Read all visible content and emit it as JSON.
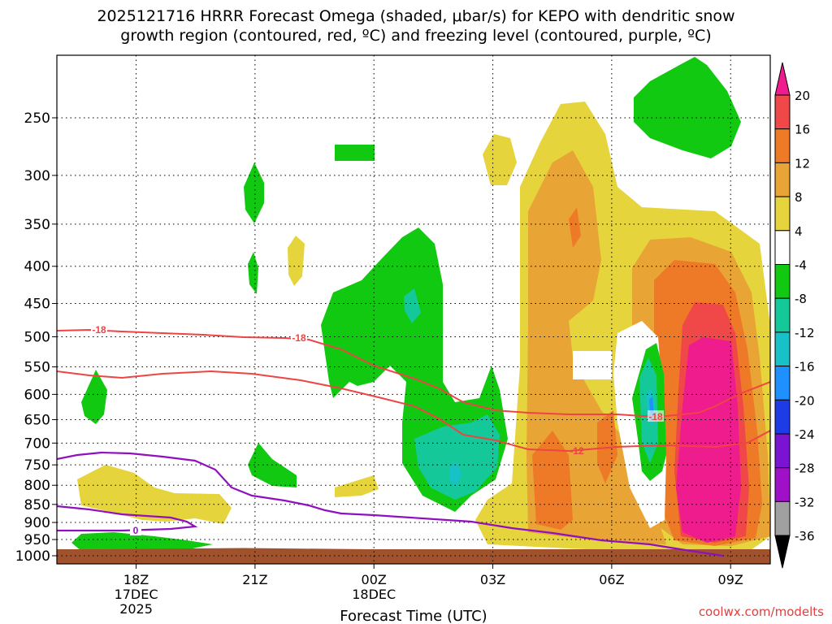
{
  "chart_data": {
    "type": "heatmap",
    "title_line1": "2025121716 HRRR Forecast Omega (shaded, μbar/s) for KEPO with dendritic snow",
    "title_line2": "growth region (contoured, red, ºC) and freezing level (contoured, purple, ºC)",
    "xlabel": "Forecast Time (UTC)",
    "credit": "coolwx.com/modelts",
    "y_ticks": [
      "250",
      "300",
      "350",
      "400",
      "450",
      "500",
      "550",
      "600",
      "650",
      "700",
      "750",
      "800",
      "850",
      "900",
      "950",
      "1000"
    ],
    "y_values": [
      250,
      300,
      350,
      400,
      450,
      500,
      550,
      600,
      650,
      700,
      750,
      800,
      850,
      900,
      950,
      1000
    ],
    "x_ticks": [
      {
        "label": "18Z",
        "sub1": "17DEC",
        "sub2": "2025",
        "hour": 2
      },
      {
        "label": "21Z",
        "sub1": "",
        "sub2": "",
        "hour": 5
      },
      {
        "label": "00Z",
        "sub1": "18DEC",
        "sub2": "",
        "hour": 8
      },
      {
        "label": "03Z",
        "sub1": "",
        "sub2": "",
        "hour": 11
      },
      {
        "label": "06Z",
        "sub1": "",
        "sub2": "",
        "hour": 14
      },
      {
        "label": "09Z",
        "sub1": "",
        "sub2": "",
        "hour": 17
      }
    ],
    "x_range_hours": [
      0,
      18
    ],
    "colorbar": {
      "labels": [
        "20",
        "16",
        "12",
        "8",
        "4",
        "-4",
        "-8",
        "-12",
        "-16",
        "-20",
        "-24",
        "-28",
        "-32",
        "-36"
      ],
      "colors": [
        "#ee1c8c",
        "#f04848",
        "#ee7a28",
        "#e8a434",
        "#e6d43c",
        "#ffffff",
        "#12c912",
        "#14c89a",
        "#18c0c8",
        "#1e90ff",
        "#1e3ce6",
        "#7a14d2",
        "#a010c8",
        "#a0a0a0",
        "#000000"
      ]
    },
    "contours": [
      {
        "name": "dendritic-top",
        "color": "#ee4444",
        "label": "-18",
        "labels": [
          "-18",
          "-18",
          "-18"
        ]
      },
      {
        "name": "dendritic-bottom",
        "color": "#ee4444",
        "label": "-12",
        "labels": [
          "-12"
        ]
      },
      {
        "name": "freezing-level",
        "color": "#9010c0",
        "label": "0",
        "labels": [
          "0"
        ]
      }
    ]
  }
}
